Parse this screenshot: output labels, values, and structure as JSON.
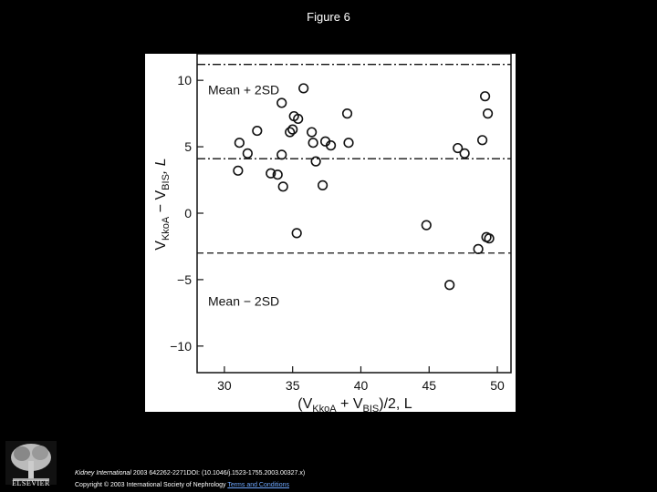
{
  "slide": {
    "title": "Figure 6"
  },
  "footer": {
    "citation_journal": "Kidney International",
    "citation_rest": " 2003 642262-2271DOI: (10.1046/j.1523-1755.2003.00327.x)",
    "copyright": "Copyright © 2003 International Society of Nephrology",
    "terms_link": "Terms and Conditions",
    "logo_text": "ELSEVIER"
  },
  "chart_data": {
    "type": "scatter",
    "title": "",
    "xlabel_main": "(V",
    "xlabel_sub1": "KkoA",
    "xlabel_mid": " + V",
    "xlabel_sub2": "BIS",
    "xlabel_end": ")/2, L",
    "ylabel_main": "V",
    "ylabel_sub1": "KkoA",
    "ylabel_mid": " − V",
    "ylabel_sub2": "BIS",
    "ylabel_end": ", L",
    "xlim": [
      28,
      51
    ],
    "ylim": [
      -12,
      12
    ],
    "xticks": [
      30,
      35,
      40,
      45,
      50
    ],
    "yticks": [
      10,
      5,
      0,
      -5,
      -10
    ],
    "ytick_labels": [
      "10",
      "5",
      "0",
      "−5",
      "−10"
    ],
    "reference_lines": [
      {
        "label": "Mean + 2SD",
        "value": 11.2,
        "style": "dashdot"
      },
      {
        "label": "",
        "value": 4.1,
        "style": "dashdot"
      },
      {
        "label": "Mean − 2SD",
        "value": -3.0,
        "style": "dashed"
      }
    ],
    "annotations": [
      {
        "text": "Mean + 2SD",
        "x": 28.8,
        "y": 9.3
      },
      {
        "text": "Mean − 2SD",
        "x": 28.8,
        "y": -6.6
      }
    ],
    "points": [
      {
        "x": 31.1,
        "y": 5.3
      },
      {
        "x": 31.7,
        "y": 4.5
      },
      {
        "x": 31.0,
        "y": 3.2
      },
      {
        "x": 32.4,
        "y": 6.2
      },
      {
        "x": 33.4,
        "y": 3.0
      },
      {
        "x": 33.9,
        "y": 2.9
      },
      {
        "x": 34.2,
        "y": 4.4
      },
      {
        "x": 34.3,
        "y": 2.0
      },
      {
        "x": 34.2,
        "y": 8.3
      },
      {
        "x": 34.8,
        "y": 6.1
      },
      {
        "x": 35.0,
        "y": 6.3
      },
      {
        "x": 35.1,
        "y": 7.3
      },
      {
        "x": 35.4,
        "y": 7.1
      },
      {
        "x": 35.8,
        "y": 9.4
      },
      {
        "x": 35.3,
        "y": -1.5
      },
      {
        "x": 36.4,
        "y": 6.1
      },
      {
        "x": 36.5,
        "y": 5.3
      },
      {
        "x": 36.7,
        "y": 3.9
      },
      {
        "x": 37.4,
        "y": 5.4
      },
      {
        "x": 37.2,
        "y": 2.1
      },
      {
        "x": 37.8,
        "y": 5.1
      },
      {
        "x": 39.0,
        "y": 7.5
      },
      {
        "x": 39.1,
        "y": 5.3
      },
      {
        "x": 44.8,
        "y": -0.9
      },
      {
        "x": 46.5,
        "y": -5.4
      },
      {
        "x": 47.1,
        "y": 4.9
      },
      {
        "x": 47.6,
        "y": 4.5
      },
      {
        "x": 48.9,
        "y": 5.5
      },
      {
        "x": 48.6,
        "y": -2.7
      },
      {
        "x": 49.1,
        "y": 8.8
      },
      {
        "x": 49.3,
        "y": 7.5
      },
      {
        "x": 49.2,
        "y": -1.8
      },
      {
        "x": 49.4,
        "y": -1.9
      }
    ]
  }
}
